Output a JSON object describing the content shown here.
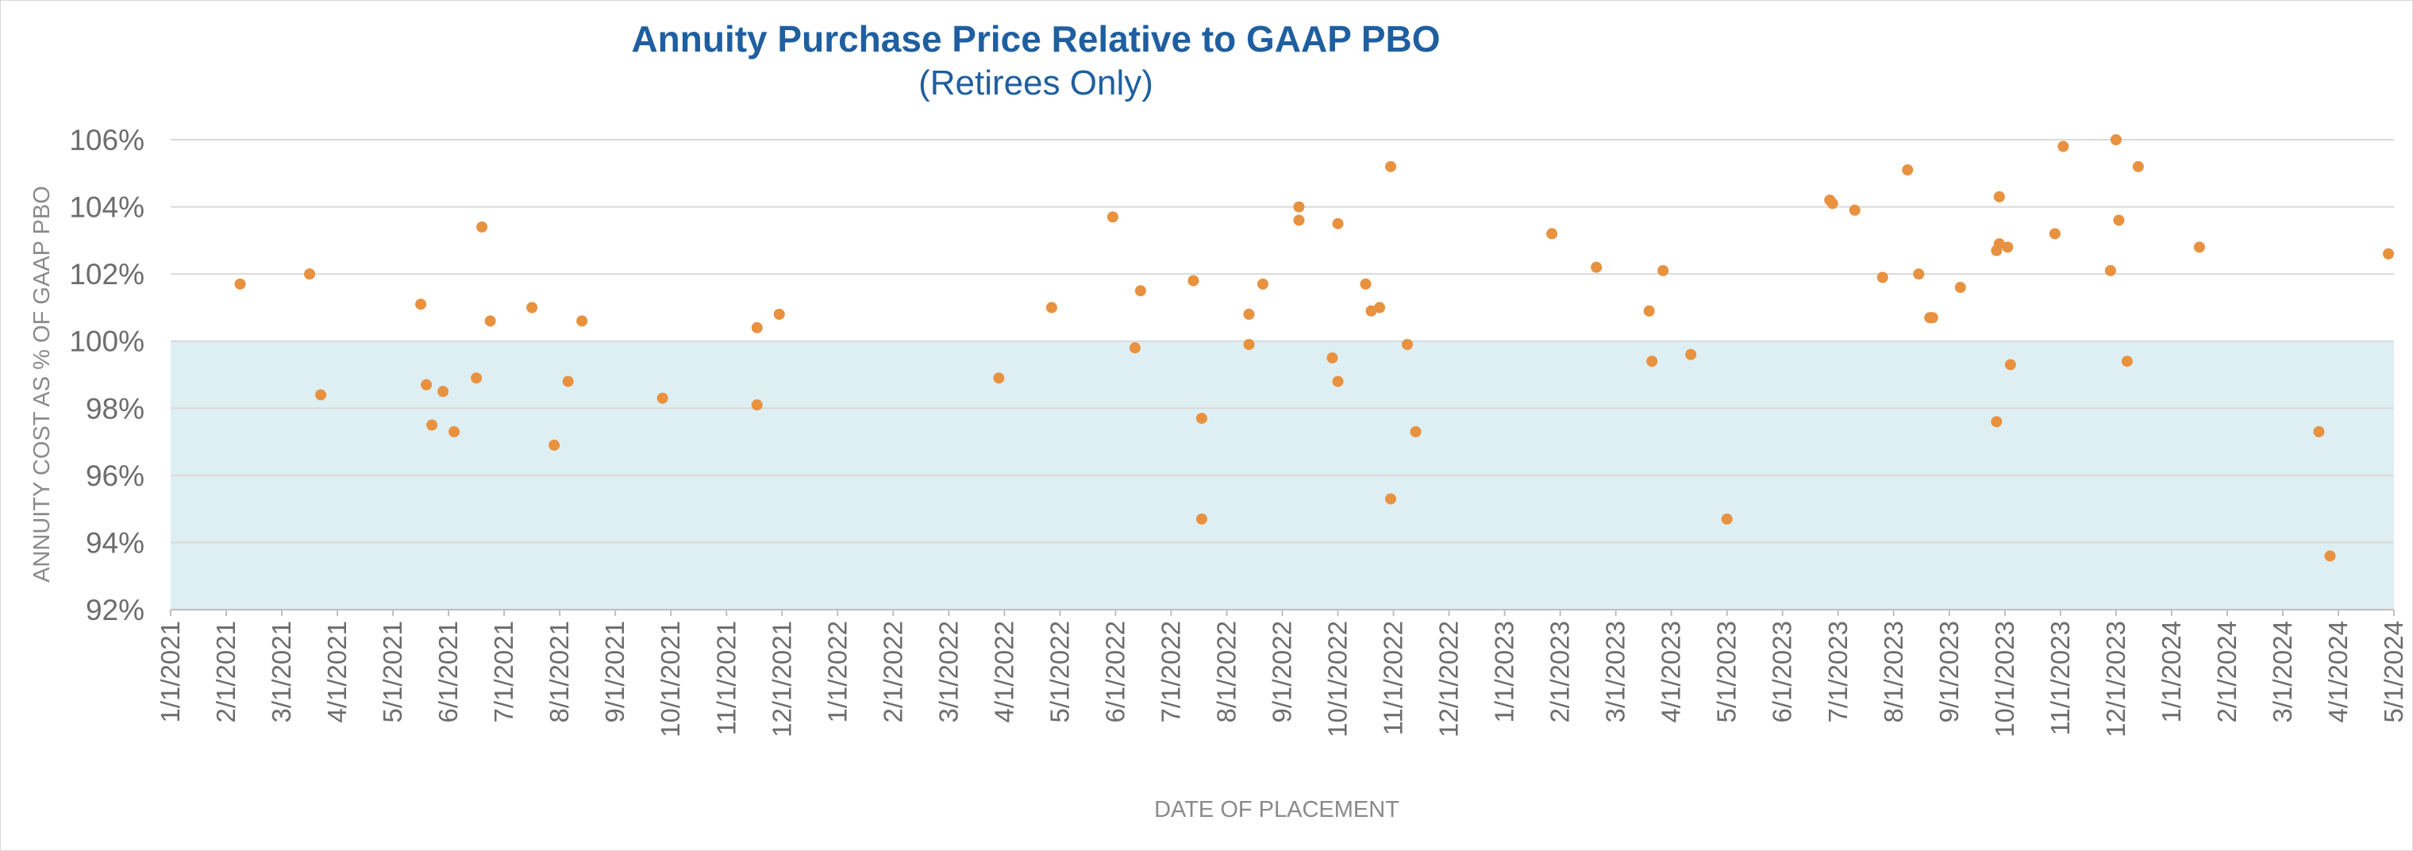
{
  "chart_data": {
    "type": "scatter",
    "title": "Annuity Purchase Price Relative to GAAP PBO",
    "subtitle": "(Retirees Only)",
    "xlabel": "DATE OF PLACEMENT",
    "ylabel": "ANNUITY COST AS % OF GAAP PBO",
    "ylim": [
      92,
      106
    ],
    "y_ticks": [
      "92%",
      "94%",
      "96%",
      "98%",
      "100%",
      "102%",
      "104%",
      "106%"
    ],
    "x_ticks": [
      "1/1/2021",
      "2/1/2021",
      "3/1/2021",
      "4/1/2021",
      "5/1/2021",
      "6/1/2021",
      "7/1/2021",
      "8/1/2021",
      "9/1/2021",
      "10/1/2021",
      "11/1/2021",
      "12/1/2021",
      "1/1/2022",
      "2/1/2022",
      "3/1/2022",
      "4/1/2022",
      "5/1/2022",
      "6/1/2022",
      "7/1/2022",
      "8/1/2022",
      "9/1/2022",
      "10/1/2022",
      "11/1/2022",
      "12/1/2022",
      "1/1/2023",
      "2/1/2023",
      "3/1/2023",
      "4/1/2023",
      "5/1/2023",
      "6/1/2023",
      "7/1/2023",
      "8/1/2023",
      "9/1/2023",
      "10/1/2023",
      "11/1/2023",
      "12/1/2023",
      "1/1/2024",
      "2/1/2024",
      "3/1/2024",
      "4/1/2024",
      "5/1/2024"
    ],
    "x_unit": "months since 1/1/2021",
    "shaded_region": {
      "y_from": 92,
      "y_to": 100,
      "color": "#deeff3"
    },
    "grid": true,
    "point_color": "#e8913f",
    "points": [
      {
        "x": 1.25,
        "y": 101.7
      },
      {
        "x": 2.5,
        "y": 102.0
      },
      {
        "x": 2.7,
        "y": 98.4
      },
      {
        "x": 4.5,
        "y": 101.1
      },
      {
        "x": 4.6,
        "y": 98.7
      },
      {
        "x": 4.7,
        "y": 97.5
      },
      {
        "x": 4.9,
        "y": 98.5
      },
      {
        "x": 5.1,
        "y": 97.3
      },
      {
        "x": 5.5,
        "y": 98.9
      },
      {
        "x": 5.6,
        "y": 103.4
      },
      {
        "x": 5.75,
        "y": 100.6
      },
      {
        "x": 6.5,
        "y": 101.0
      },
      {
        "x": 6.9,
        "y": 96.9
      },
      {
        "x": 7.15,
        "y": 98.8
      },
      {
        "x": 7.4,
        "y": 100.6
      },
      {
        "x": 8.85,
        "y": 98.3
      },
      {
        "x": 10.55,
        "y": 100.4
      },
      {
        "x": 10.55,
        "y": 98.1
      },
      {
        "x": 10.95,
        "y": 100.8
      },
      {
        "x": 14.9,
        "y": 98.9
      },
      {
        "x": 15.85,
        "y": 101.0
      },
      {
        "x": 16.95,
        "y": 103.7
      },
      {
        "x": 17.35,
        "y": 99.8
      },
      {
        "x": 17.45,
        "y": 101.5
      },
      {
        "x": 18.4,
        "y": 101.8
      },
      {
        "x": 18.55,
        "y": 97.7
      },
      {
        "x": 18.55,
        "y": 94.7
      },
      {
        "x": 19.4,
        "y": 100.8
      },
      {
        "x": 19.4,
        "y": 99.9
      },
      {
        "x": 19.65,
        "y": 101.7
      },
      {
        "x": 20.3,
        "y": 104.0
      },
      {
        "x": 20.3,
        "y": 103.6
      },
      {
        "x": 20.9,
        "y": 99.5
      },
      {
        "x": 21.0,
        "y": 98.8
      },
      {
        "x": 21.0,
        "y": 103.5
      },
      {
        "x": 21.5,
        "y": 101.7
      },
      {
        "x": 21.6,
        "y": 100.9
      },
      {
        "x": 21.75,
        "y": 101.0
      },
      {
        "x": 21.95,
        "y": 105.2
      },
      {
        "x": 21.95,
        "y": 95.3
      },
      {
        "x": 22.25,
        "y": 99.9
      },
      {
        "x": 22.4,
        "y": 97.3
      },
      {
        "x": 24.85,
        "y": 103.2
      },
      {
        "x": 25.65,
        "y": 102.2
      },
      {
        "x": 26.6,
        "y": 100.9
      },
      {
        "x": 26.65,
        "y": 99.4
      },
      {
        "x": 26.85,
        "y": 102.1
      },
      {
        "x": 27.35,
        "y": 99.6
      },
      {
        "x": 28.0,
        "y": 94.7
      },
      {
        "x": 29.85,
        "y": 104.2
      },
      {
        "x": 29.9,
        "y": 104.1
      },
      {
        "x": 30.3,
        "y": 103.9
      },
      {
        "x": 30.8,
        "y": 101.9
      },
      {
        "x": 31.25,
        "y": 105.1
      },
      {
        "x": 31.45,
        "y": 102.0
      },
      {
        "x": 31.65,
        "y": 100.7
      },
      {
        "x": 31.7,
        "y": 100.7
      },
      {
        "x": 32.2,
        "y": 101.6
      },
      {
        "x": 32.85,
        "y": 102.7
      },
      {
        "x": 32.85,
        "y": 97.6
      },
      {
        "x": 32.9,
        "y": 104.3
      },
      {
        "x": 32.9,
        "y": 102.9
      },
      {
        "x": 33.05,
        "y": 102.8
      },
      {
        "x": 33.1,
        "y": 99.3
      },
      {
        "x": 33.9,
        "y": 103.2
      },
      {
        "x": 34.05,
        "y": 105.8
      },
      {
        "x": 34.9,
        "y": 102.1
      },
      {
        "x": 35.0,
        "y": 106.0
      },
      {
        "x": 35.05,
        "y": 103.6
      },
      {
        "x": 35.2,
        "y": 99.4
      },
      {
        "x": 35.4,
        "y": 105.2
      },
      {
        "x": 36.5,
        "y": 102.8
      },
      {
        "x": 38.65,
        "y": 97.3
      },
      {
        "x": 38.85,
        "y": 93.6
      },
      {
        "x": 39.9,
        "y": 102.6
      }
    ]
  }
}
